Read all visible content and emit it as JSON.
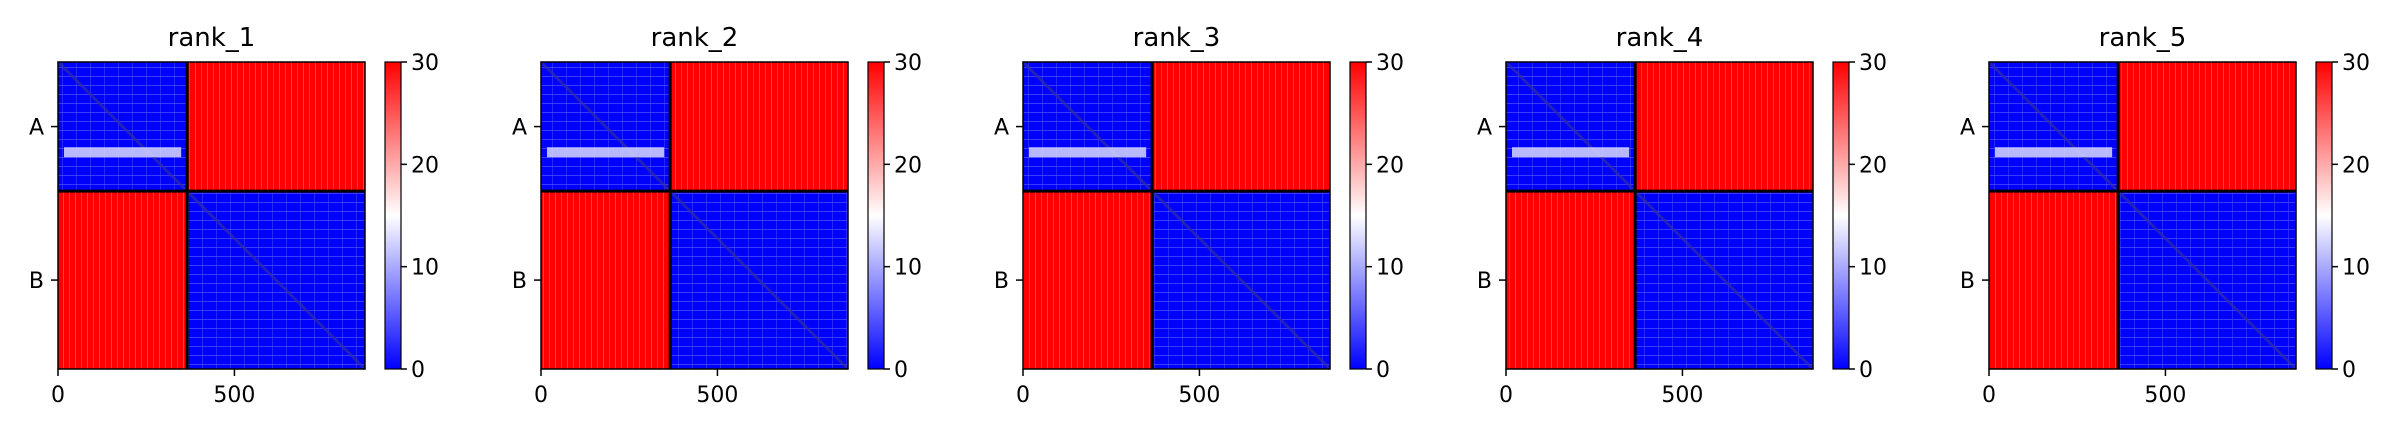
{
  "chart_data": [
    {
      "type": "heatmap",
      "title": "rank_1",
      "xlabel": "",
      "ylabel": "",
      "x_ticks": [
        0,
        500
      ],
      "xlim": [
        0,
        870
      ],
      "chain_boundary": 366,
      "y_tick_labels": [
        "A",
        "B"
      ],
      "colorbar": {
        "ticks": [
          0,
          10,
          20,
          30
        ],
        "range": [
          0,
          30
        ],
        "colormap": "bwr"
      },
      "blocks": {
        "AA": "low",
        "AB": "high",
        "BA": "high",
        "BB": "low"
      }
    },
    {
      "type": "heatmap",
      "title": "rank_2",
      "xlabel": "",
      "ylabel": "",
      "x_ticks": [
        0,
        500
      ],
      "xlim": [
        0,
        870
      ],
      "chain_boundary": 366,
      "y_tick_labels": [
        "A",
        "B"
      ],
      "colorbar": {
        "ticks": [
          0,
          10,
          20,
          30
        ],
        "range": [
          0,
          30
        ],
        "colormap": "bwr"
      },
      "blocks": {
        "AA": "low",
        "AB": "high",
        "BA": "high",
        "BB": "low"
      }
    },
    {
      "type": "heatmap",
      "title": "rank_3",
      "xlabel": "",
      "ylabel": "",
      "x_ticks": [
        0,
        500
      ],
      "xlim": [
        0,
        870
      ],
      "chain_boundary": 366,
      "y_tick_labels": [
        "A",
        "B"
      ],
      "colorbar": {
        "ticks": [
          0,
          10,
          20,
          30
        ],
        "range": [
          0,
          30
        ],
        "colormap": "bwr"
      },
      "blocks": {
        "AA": "low",
        "AB": "high",
        "BA": "high",
        "BB": "low"
      }
    },
    {
      "type": "heatmap",
      "title": "rank_4",
      "xlabel": "",
      "ylabel": "",
      "x_ticks": [
        0,
        500
      ],
      "xlim": [
        0,
        870
      ],
      "chain_boundary": 366,
      "y_tick_labels": [
        "A",
        "B"
      ],
      "colorbar": {
        "ticks": [
          0,
          10,
          20,
          30
        ],
        "range": [
          0,
          30
        ],
        "colormap": "bwr"
      },
      "blocks": {
        "AA": "low",
        "AB": "high",
        "BA": "high",
        "BB": "low"
      }
    },
    {
      "type": "heatmap",
      "title": "rank_5",
      "xlabel": "",
      "ylabel": "",
      "x_ticks": [
        0,
        500
      ],
      "xlim": [
        0,
        870
      ],
      "chain_boundary": 366,
      "y_tick_labels": [
        "A",
        "B"
      ],
      "colorbar": {
        "ticks": [
          0,
          10,
          20,
          30
        ],
        "range": [
          0,
          30
        ],
        "colormap": "bwr"
      },
      "blocks": {
        "AA": "low",
        "AB": "high",
        "BA": "high",
        "BB": "low"
      }
    }
  ],
  "colors": {
    "low": "#0000ff",
    "mid": "#ffffff",
    "high": "#ff0000",
    "axis": "#000000"
  }
}
